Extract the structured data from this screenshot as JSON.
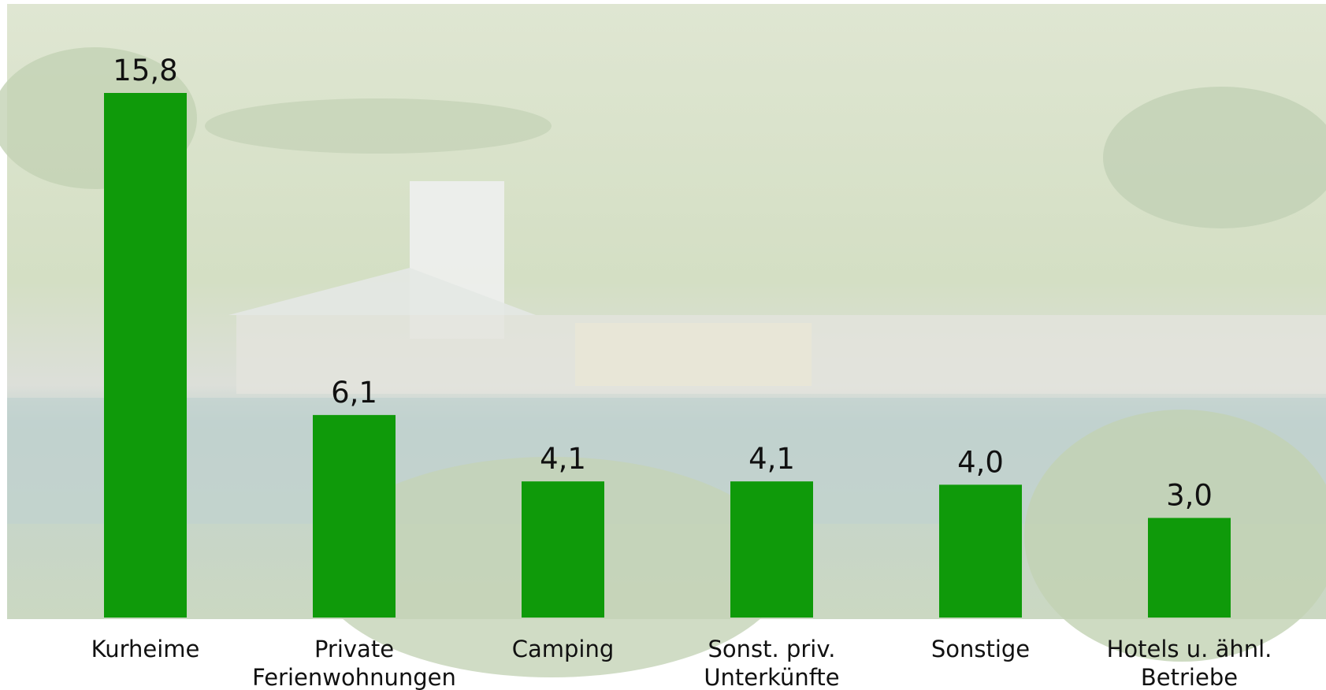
{
  "chart_data": {
    "type": "bar",
    "categories": [
      "Kurheime",
      "Private Ferienwohnungen",
      "Camping",
      "Sonst. priv. Unterkünfte",
      "Sonstige",
      "Hotels u. ähnl. Betriebe"
    ],
    "values": [
      15.8,
      6.1,
      4.1,
      4.1,
      4.0,
      3.0
    ],
    "value_labels": [
      "15,8",
      "6,1",
      "4,1",
      "4,1",
      "4,0",
      "3,0"
    ],
    "color": "#0f9a0a"
  }
}
